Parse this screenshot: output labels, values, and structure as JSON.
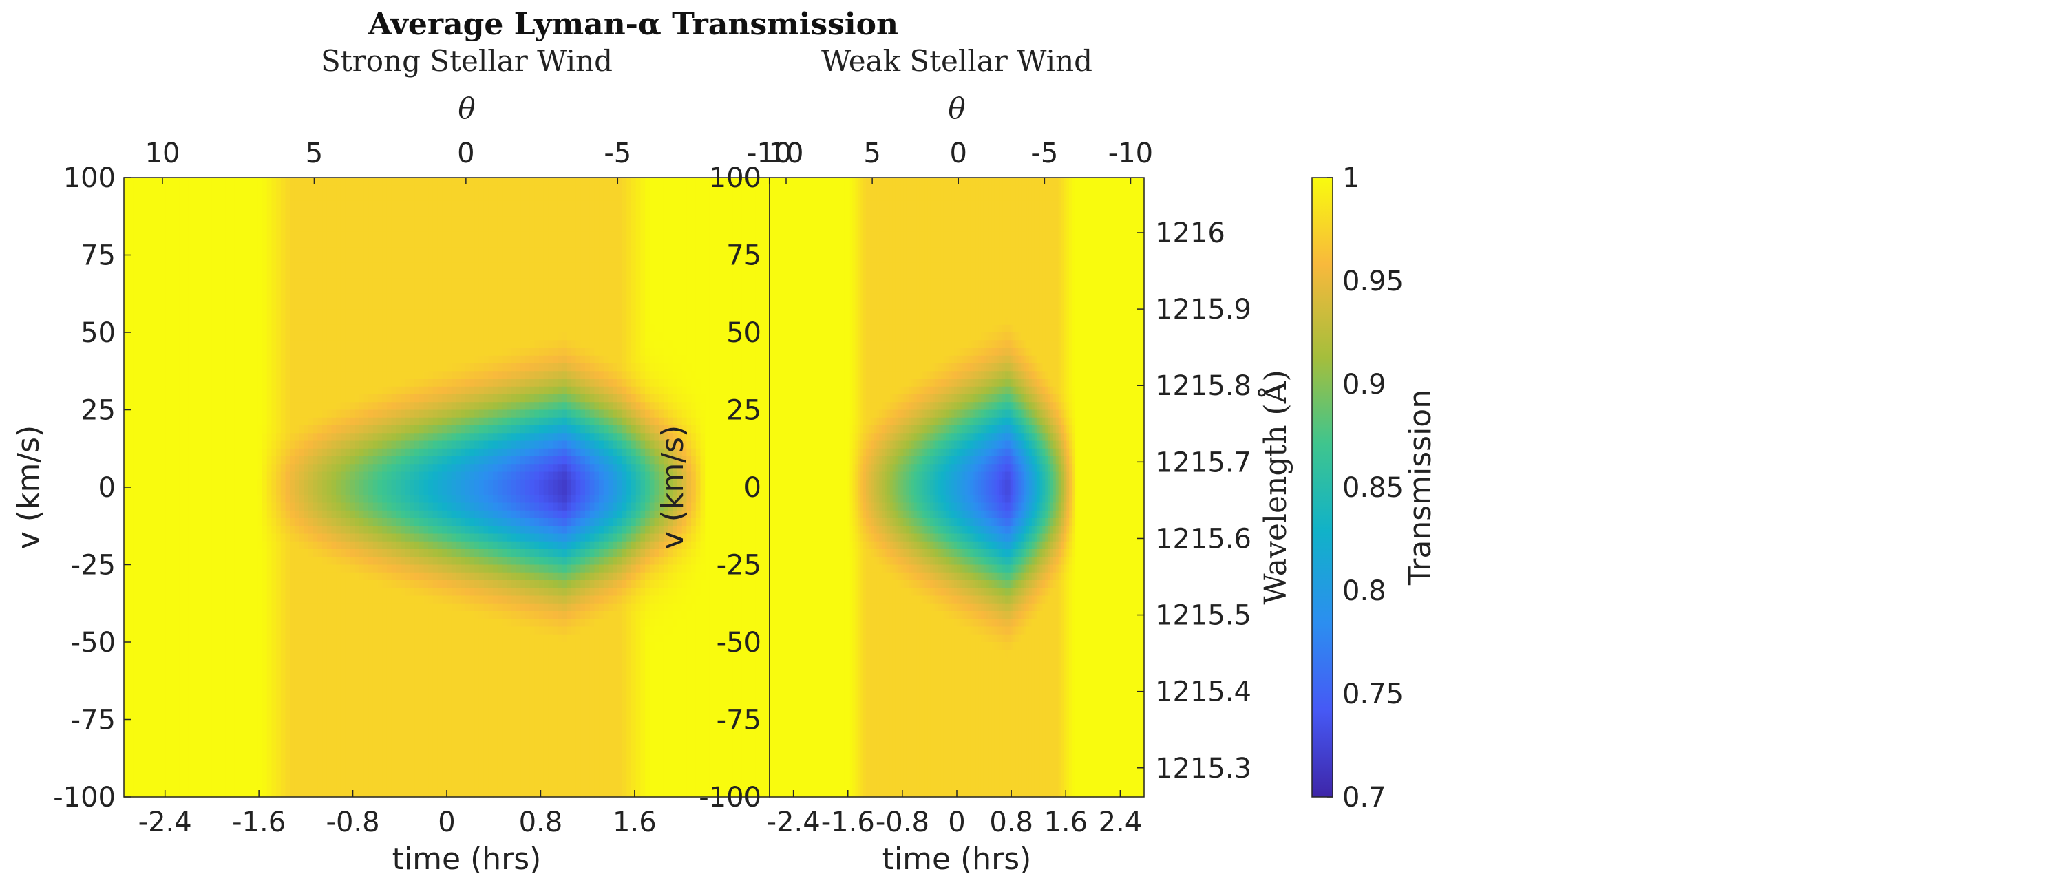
{
  "figure": {
    "title": "Average Lyman-α Transmission"
  },
  "chart_data": [
    {
      "type": "heatmap",
      "subtitle": "Strong Stellar Wind",
      "xlabel": "time (hrs)",
      "ylabel": "v (km/s)",
      "top_xlabel": "θ",
      "xlim": [
        -2.75,
        2.75
      ],
      "ylim": [
        -100,
        100
      ],
      "x_ticks": [
        -2.4,
        -1.6,
        -0.8,
        0,
        0.8,
        1.6
      ],
      "x_tick_labels": [
        "-2.4",
        "-1.6",
        "-0.8",
        "0",
        "0.8",
        "1.6"
      ],
      "y_ticks": [
        100,
        75,
        50,
        25,
        0,
        -25,
        -50,
        -75,
        -100
      ],
      "y_tick_labels": [
        "100",
        "75",
        "50",
        "25",
        "0",
        "-25",
        "-50",
        "-75",
        "-100"
      ],
      "top_ticks": [
        10,
        5,
        0,
        -5,
        -10
      ],
      "top_tick_labels": [
        "10",
        "5",
        "0",
        "-5",
        "-10"
      ],
      "clim": [
        0.7,
        1
      ],
      "model": {
        "transit_start": -1.45,
        "transit_end": 1.6,
        "baseline_in_transit": 0.975,
        "absorption_onset": -1.6,
        "absorption_end": 2.2,
        "peak_time": 1.0,
        "min_transmission": 0.73,
        "line_halfwidth_kms": 20
      }
    },
    {
      "type": "heatmap",
      "subtitle": "Weak Stellar Wind",
      "xlabel": "time (hrs)",
      "ylabel": "",
      "top_xlabel": "θ",
      "right_ylabel": "Wavelength (Å)",
      "xlim": [
        -2.75,
        2.75
      ],
      "ylim": [
        -100,
        100
      ],
      "x_ticks": [
        -2.4,
        -1.6,
        -0.8,
        0,
        0.8,
        1.6,
        2.4
      ],
      "x_tick_labels": [
        "-2.4",
        "-1.6",
        "-0.8",
        "0",
        "0.8",
        "1.6",
        "2.4"
      ],
      "top_ticks": [
        10,
        5,
        0,
        -5,
        -10
      ],
      "top_tick_labels": [
        "10",
        "5",
        "0",
        "-5",
        "-10"
      ],
      "right_ticks": [
        1216,
        1215.9,
        1215.8,
        1215.7,
        1215.6,
        1215.5,
        1215.4,
        1215.3
      ],
      "right_tick_labels": [
        "1216",
        "1215.9",
        "1215.8",
        "1215.7",
        "1215.6",
        "1215.5",
        "1215.4",
        "1215.3"
      ],
      "right_ylim": [
        1215.262,
        1216.072
      ],
      "clim": [
        0.7,
        1
      ],
      "model": {
        "transit_start": -1.45,
        "transit_end": 1.6,
        "baseline_in_transit": 0.975,
        "absorption_onset": -1.6,
        "absorption_end": 1.75,
        "peak_time": 0.75,
        "min_transmission": 0.74,
        "line_halfwidth_kms": 22
      }
    }
  ],
  "colorbar": {
    "label": "Transmission",
    "range": [
      0.7,
      1
    ],
    "ticks": [
      1,
      0.95,
      0.9,
      0.85,
      0.8,
      0.75,
      0.7
    ],
    "tick_labels": [
      "1",
      "0.95",
      "0.9",
      "0.85",
      "0.8",
      "0.75",
      "0.7"
    ]
  }
}
